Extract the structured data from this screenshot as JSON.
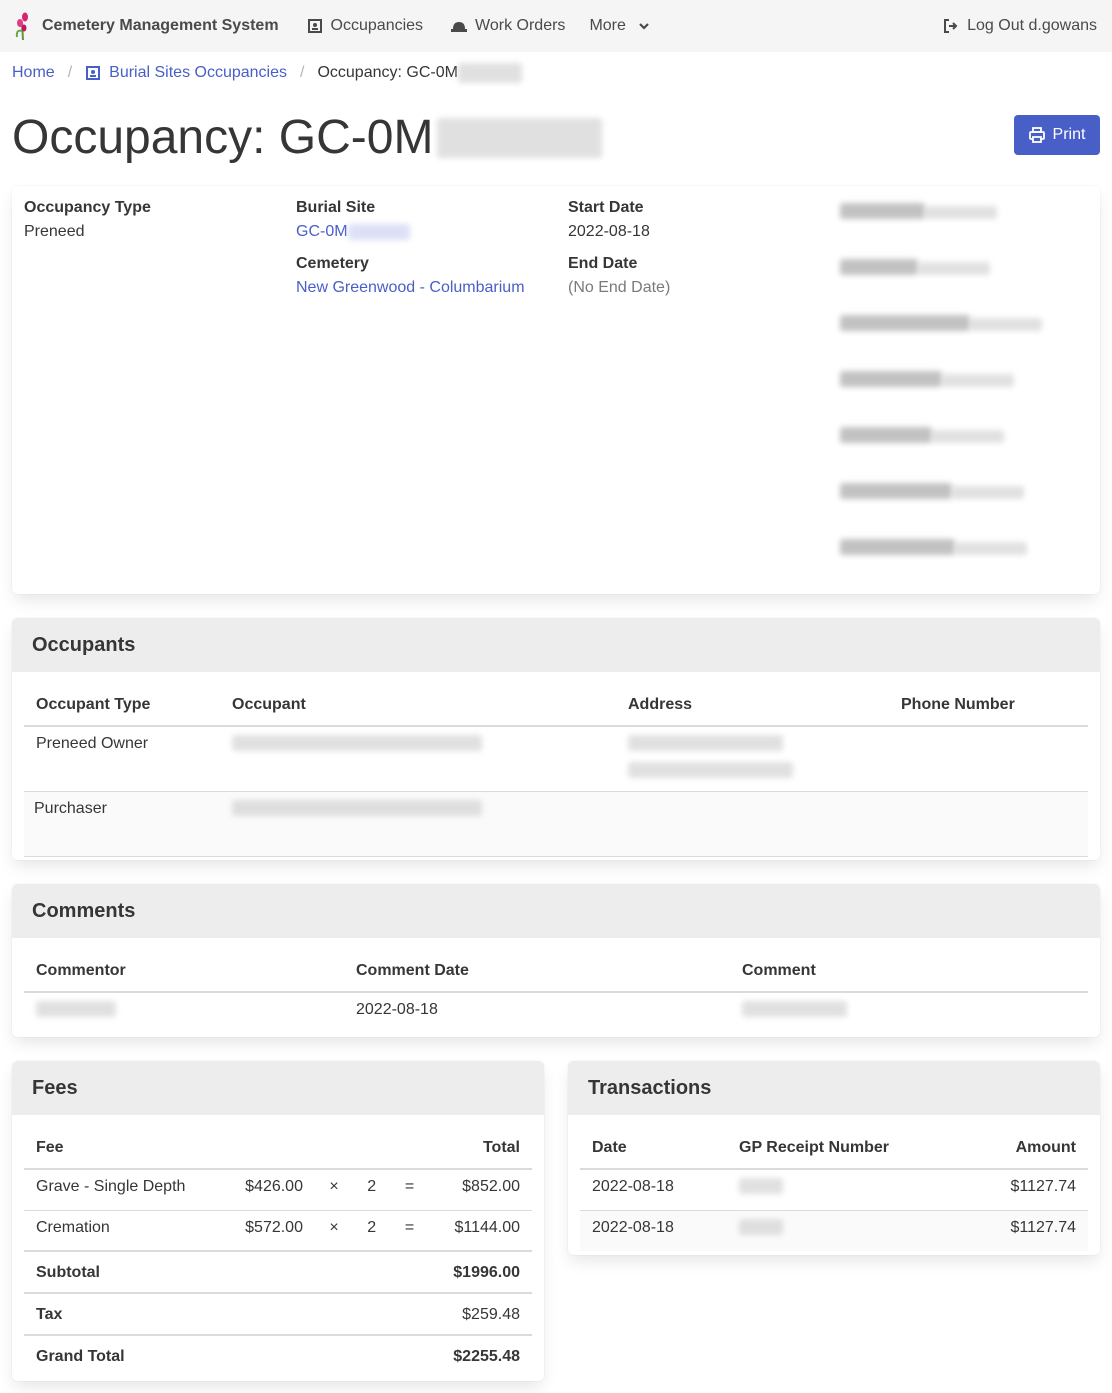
{
  "nav": {
    "brand": "Cemetery Management System",
    "items": [
      {
        "label": "Occupancies",
        "icon": "occupancy-icon"
      },
      {
        "label": "Work Orders",
        "icon": "hard-hat-icon"
      },
      {
        "label": "More",
        "icon": "chevron-down-icon"
      }
    ],
    "logout": "Log Out d.gowans"
  },
  "breadcrumb": {
    "home": "Home",
    "section": "Burial Sites Occupancies",
    "current": "Occupancy: GC-0M"
  },
  "page": {
    "title": "Occupancy: GC-0M",
    "print_label": "Print"
  },
  "details": {
    "occupancy_type_label": "Occupancy Type",
    "occupancy_type": "Preneed",
    "burial_site_label": "Burial Site",
    "burial_site": "GC-0M",
    "cemetery_label": "Cemetery",
    "cemetery": "New Greenwood - Columbarium",
    "start_date_label": "Start Date",
    "start_date": "2022-08-18",
    "end_date_label": "End Date",
    "end_date": "(No End Date)"
  },
  "occupants": {
    "title": "Occupants",
    "headers": [
      "Occupant Type",
      "Occupant",
      "Address",
      "Phone Number"
    ],
    "rows": [
      {
        "type": "Preneed Owner"
      },
      {
        "type": "Purchaser"
      }
    ]
  },
  "comments": {
    "title": "Comments",
    "headers": [
      "Commentor",
      "Comment Date",
      "Comment"
    ],
    "rows": [
      {
        "date": "2022-08-18"
      }
    ]
  },
  "fees": {
    "title": "Fees",
    "headers": [
      "Fee",
      "Total"
    ],
    "rows": [
      {
        "fee": "Grave - Single Depth",
        "unit": "$426.00",
        "times": "×",
        "qty": "2",
        "eq": "=",
        "total": "$852.00"
      },
      {
        "fee": "Cremation",
        "unit": "$572.00",
        "times": "×",
        "qty": "2",
        "eq": "=",
        "total": "$1144.00"
      }
    ],
    "subtotal_label": "Subtotal",
    "subtotal": "$1996.00",
    "tax_label": "Tax",
    "tax": "$259.48",
    "grand_total_label": "Grand Total",
    "grand_total": "$2255.48"
  },
  "transactions": {
    "title": "Transactions",
    "headers": [
      "Date",
      "GP Receipt Number",
      "Amount"
    ],
    "rows": [
      {
        "date": "2022-08-18",
        "amount": "$1127.74"
      },
      {
        "date": "2022-08-18",
        "amount": "$1127.74"
      }
    ]
  },
  "colors": {
    "link": "#485fc7",
    "navbar": "#f5f5f5",
    "panel_heading": "#ededed"
  }
}
